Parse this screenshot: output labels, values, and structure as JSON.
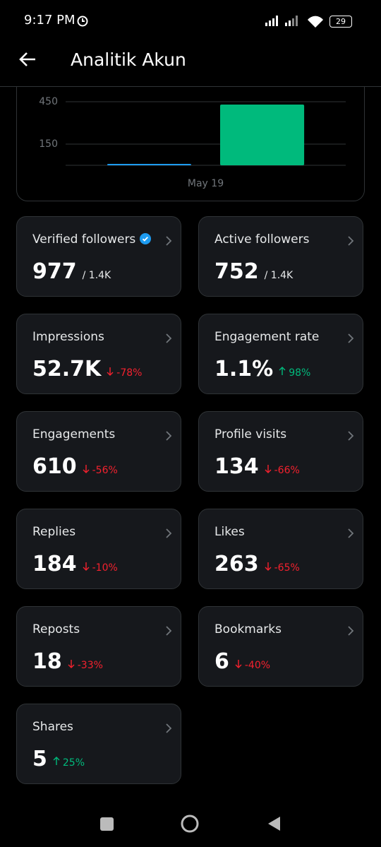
{
  "status_bar": {
    "time": "9:17 PM",
    "battery": "29"
  },
  "header": {
    "title": "Analitik Akun"
  },
  "chart_data": {
    "type": "bar",
    "categories": [
      "May 19"
    ],
    "series": [
      {
        "color": "#1d9bf0",
        "values": [
          0
        ]
      },
      {
        "color": "#00ba7c",
        "values": [
          430
        ]
      }
    ],
    "ylim": [
      0,
      500
    ],
    "yticks": [
      150,
      450
    ],
    "grid": true
  },
  "cards": [
    {
      "label": "Verified followers",
      "value": "977",
      "total": "/ 1.4K"
    },
    {
      "label": "Active followers",
      "value": "752",
      "total": "/ 1.4K"
    },
    {
      "label": "Impressions",
      "value": "52.7K",
      "change": "-78%"
    },
    {
      "label": "Engagement rate",
      "value": "1.1%",
      "change": "98%"
    },
    {
      "label": "Engagements",
      "value": "610",
      "change": "-56%"
    },
    {
      "label": "Profile visits",
      "value": "134",
      "change": "-66%"
    },
    {
      "label": "Replies",
      "value": "184",
      "change": "-10%"
    },
    {
      "label": "Likes",
      "value": "263",
      "change": "-65%"
    },
    {
      "label": "Reposts",
      "value": "18",
      "change": "-33%"
    },
    {
      "label": "Bookmarks",
      "value": "6",
      "change": "-40%"
    },
    {
      "label": "Shares",
      "value": "5",
      "change": "25%"
    }
  ]
}
